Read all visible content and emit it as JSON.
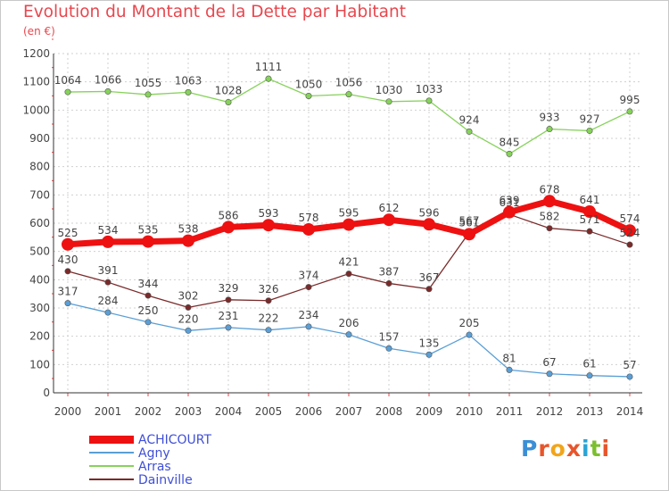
{
  "header": {
    "title": "Evolution du Montant de la Dette par Habitant",
    "unit": "(en €)"
  },
  "brand": {
    "letters": [
      "P",
      "r",
      "o",
      "x",
      "i",
      "t",
      "i"
    ],
    "colors": [
      "#3b8fd6",
      "#e8552a",
      "#f2a51a",
      "#e8552a",
      "#2aa4d6",
      "#7cbf2e",
      "#e8552a"
    ]
  },
  "chart_data": {
    "type": "line",
    "title": "Evolution du Montant de la Dette par Habitant",
    "ylabel": "(en €)",
    "xlabel": "",
    "x": [
      "2000",
      "2001",
      "2002",
      "2003",
      "2004",
      "2005",
      "2006",
      "2007",
      "2008",
      "2009",
      "2010",
      "2011",
      "2012",
      "2013",
      "2014"
    ],
    "ylim": [
      0,
      1200
    ],
    "yticks": [
      0,
      100,
      200,
      300,
      400,
      500,
      600,
      700,
      800,
      900,
      1000,
      1100,
      1200
    ],
    "grid": true,
    "legend_position": "bottom-left",
    "series": [
      {
        "name": "Agny",
        "color": "#5a9fd6",
        "values": [
          317,
          284,
          250,
          220,
          231,
          222,
          234,
          206,
          157,
          135,
          205,
          81,
          67,
          61,
          57
        ],
        "labels": [
          "317",
          "284",
          "250",
          "220",
          "231",
          "222",
          "234",
          "206",
          "157",
          "135",
          "205",
          "81",
          "67",
          "61",
          "57"
        ]
      },
      {
        "name": "Arras",
        "color": "#86d25a",
        "values": [
          1064,
          1066,
          1055,
          1063,
          1028,
          1111,
          1050,
          1056,
          1030,
          1033,
          924,
          845,
          933,
          927,
          995
        ],
        "labels": [
          "1064",
          "1066",
          "1055",
          "1063",
          "1028",
          "1111",
          "1050",
          "1056",
          "1030",
          "1033",
          "924",
          "845",
          "933",
          "927",
          "995"
        ]
      },
      {
        "name": "Dainville",
        "color": "#7a2a2a",
        "values": [
          430,
          391,
          344,
          302,
          329,
          326,
          374,
          421,
          387,
          367,
          567,
          631,
          582,
          571,
          524
        ],
        "labels": [
          "430",
          "391",
          "344",
          "302",
          "329",
          "326",
          "374",
          "421",
          "387",
          "367",
          "567",
          "631",
          "582",
          "571",
          "524"
        ]
      },
      {
        "name": "ACHICOURT",
        "color": "#ee1111",
        "values": [
          525,
          534,
          535,
          538,
          586,
          593,
          578,
          595,
          612,
          596,
          561,
          639,
          678,
          641,
          574
        ],
        "labels": [
          "525",
          "534",
          "535",
          "538",
          "586",
          "593",
          "578",
          "595",
          "612",
          "596",
          "561",
          "639",
          "678",
          "641",
          "574"
        ]
      }
    ],
    "legend": [
      "ACHICOURT",
      "Agny",
      "Arras",
      "Dainville"
    ]
  }
}
